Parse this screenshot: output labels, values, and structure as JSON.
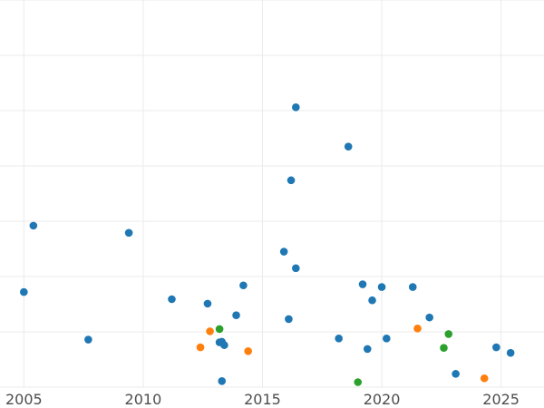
{
  "chart_data": {
    "type": "scatter",
    "title": "",
    "xlabel": "",
    "ylabel": "",
    "x_ticks": [
      "2005",
      "2010",
      "2015",
      "2020",
      "2025"
    ],
    "x_range": [
      2004,
      2026.8
    ],
    "y_range": [
      0,
      7
    ],
    "grid": true,
    "legend": "none",
    "series": [
      {
        "color": "#1f77b4",
        "points": [
          {
            "x": 2005.0,
            "y": 1.72
          },
          {
            "x": 2005.4,
            "y": 2.92
          },
          {
            "x": 2007.7,
            "y": 0.86
          },
          {
            "x": 2009.4,
            "y": 2.79
          },
          {
            "x": 2011.2,
            "y": 1.59
          },
          {
            "x": 2012.7,
            "y": 1.51
          },
          {
            "x": 2013.2,
            "y": 0.81
          },
          {
            "x": 2013.3,
            "y": 0.82
          },
          {
            "x": 2013.4,
            "y": 0.76
          },
          {
            "x": 2013.3,
            "y": 0.11
          },
          {
            "x": 2013.9,
            "y": 1.3
          },
          {
            "x": 2014.2,
            "y": 1.84
          },
          {
            "x": 2015.9,
            "y": 2.45
          },
          {
            "x": 2016.1,
            "y": 1.23
          },
          {
            "x": 2016.2,
            "y": 3.74
          },
          {
            "x": 2016.4,
            "y": 5.06
          },
          {
            "x": 2016.4,
            "y": 2.15
          },
          {
            "x": 2018.2,
            "y": 0.88
          },
          {
            "x": 2018.6,
            "y": 4.35
          },
          {
            "x": 2019.2,
            "y": 1.86
          },
          {
            "x": 2019.4,
            "y": 0.69
          },
          {
            "x": 2019.6,
            "y": 1.57
          },
          {
            "x": 2020.0,
            "y": 1.81
          },
          {
            "x": 2020.2,
            "y": 0.88
          },
          {
            "x": 2021.3,
            "y": 1.81
          },
          {
            "x": 2022.0,
            "y": 1.26
          },
          {
            "x": 2023.1,
            "y": 0.24
          },
          {
            "x": 2024.8,
            "y": 0.72
          },
          {
            "x": 2025.4,
            "y": 0.62
          }
        ]
      },
      {
        "color": "#ff7f0e",
        "points": [
          {
            "x": 2012.4,
            "y": 0.72
          },
          {
            "x": 2012.8,
            "y": 1.01
          },
          {
            "x": 2014.4,
            "y": 0.65
          },
          {
            "x": 2021.5,
            "y": 1.06
          },
          {
            "x": 2024.3,
            "y": 0.16
          }
        ]
      },
      {
        "color": "#2ca02c",
        "points": [
          {
            "x": 2013.2,
            "y": 1.05
          },
          {
            "x": 2019.0,
            "y": 0.09
          },
          {
            "x": 2022.6,
            "y": 0.71
          },
          {
            "x": 2022.8,
            "y": 0.96
          }
        ]
      }
    ]
  }
}
